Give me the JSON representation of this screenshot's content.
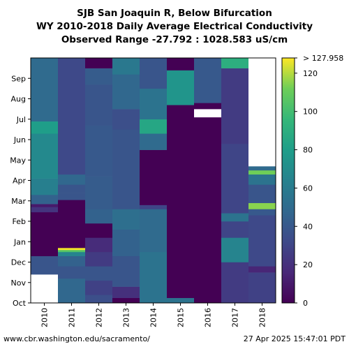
{
  "title_lines": [
    "SJB San Joaquin R, Below Bifurcation",
    "WY 2010-2018 Daily Average Electrical Conductivity",
    "Observed Range -27.792 : 1028.583 uS/cm"
  ],
  "footer": {
    "url": "www.cbr.washington.edu/sacramento/",
    "timestamp": "27 Apr 2025 15:47:01 PDT"
  },
  "colors": {
    "low": "#440154",
    "mid": "#21918c",
    "high": "#fde725",
    "missing": "#ffffff"
  },
  "chart_data": {
    "type": "heatmap",
    "x_categories": [
      "2010",
      "2011",
      "2012",
      "2013",
      "2014",
      "2015",
      "2016",
      "2017",
      "2018"
    ],
    "y_ticks": [
      "Oct",
      "Nov",
      "Dec",
      "Jan",
      "Feb",
      "Mar",
      "Apr",
      "May",
      "Jun",
      "Jul",
      "Aug",
      "Sep"
    ],
    "colorbar": {
      "min": 0,
      "max": 127.958,
      "ticks": [
        "0",
        "20",
        "40",
        "60",
        "80",
        "100",
        "120"
      ],
      "top_label": "> 127.958"
    },
    "columns": [
      {
        "year": "2010",
        "segments": [
          [
            0,
            1.4,
            null
          ],
          [
            1.4,
            2.3,
            38
          ],
          [
            2.3,
            4.45,
            0
          ],
          [
            4.45,
            4.7,
            22
          ],
          [
            4.7,
            4.85,
            10
          ],
          [
            4.85,
            5.3,
            45
          ],
          [
            5.3,
            6.1,
            62
          ],
          [
            6.1,
            8.3,
            68
          ],
          [
            8.3,
            8.9,
            80
          ],
          [
            8.9,
            12,
            50
          ]
        ]
      },
      {
        "year": "2011",
        "segments": [
          [
            0,
            1.2,
            48
          ],
          [
            1.2,
            1.8,
            38
          ],
          [
            1.8,
            2.3,
            45
          ],
          [
            2.3,
            2.5,
            65
          ],
          [
            2.5,
            2.6,
            105
          ],
          [
            2.6,
            2.7,
            127
          ],
          [
            2.7,
            5.05,
            0
          ],
          [
            5.05,
            5.4,
            38
          ],
          [
            5.4,
            5.8,
            38
          ],
          [
            5.8,
            6.3,
            48
          ],
          [
            6.3,
            12,
            32
          ]
        ]
      },
      {
        "year": "2012",
        "segments": [
          [
            0,
            0.4,
            35
          ],
          [
            0.4,
            1.1,
            28
          ],
          [
            1.1,
            1.8,
            38
          ],
          [
            1.8,
            2.5,
            25
          ],
          [
            2.5,
            3.2,
            18
          ],
          [
            3.2,
            3.9,
            0
          ],
          [
            3.9,
            4.6,
            45
          ],
          [
            4.6,
            6.2,
            42
          ],
          [
            6.2,
            8.7,
            40
          ],
          [
            8.7,
            10.7,
            38
          ],
          [
            10.7,
            11.5,
            42
          ],
          [
            11.5,
            12,
            0
          ]
        ]
      },
      {
        "year": "2013",
        "segments": [
          [
            0,
            0.25,
            0
          ],
          [
            0.25,
            0.8,
            20
          ],
          [
            0.8,
            2.3,
            38
          ],
          [
            2.3,
            3.6,
            45
          ],
          [
            3.6,
            4.6,
            52
          ],
          [
            4.6,
            8.5,
            38
          ],
          [
            8.5,
            9.5,
            35
          ],
          [
            9.5,
            11.2,
            48
          ],
          [
            11.2,
            12,
            58
          ]
        ]
      },
      {
        "year": "2014",
        "segments": [
          [
            0,
            2.5,
            55
          ],
          [
            2.5,
            4.6,
            50
          ],
          [
            4.6,
            4.8,
            30
          ],
          [
            4.8,
            7.5,
            0
          ],
          [
            7.5,
            8.3,
            50
          ],
          [
            8.3,
            9.0,
            85
          ],
          [
            9.0,
            10.5,
            55
          ],
          [
            10.5,
            12,
            38
          ]
        ]
      },
      {
        "year": "2015",
        "segments": [
          [
            0,
            0.25,
            55
          ],
          [
            0.25,
            9.7,
            0
          ],
          [
            9.7,
            11.4,
            75
          ],
          [
            11.4,
            12,
            0
          ]
        ]
      },
      {
        "year": "2016",
        "segments": [
          [
            0,
            9.1,
            0
          ],
          [
            9.1,
            9.5,
            null
          ],
          [
            9.5,
            9.8,
            0
          ],
          [
            9.8,
            12,
            40
          ]
        ]
      },
      {
        "year": "2017",
        "segments": [
          [
            0,
            2.0,
            25
          ],
          [
            2.0,
            3.2,
            65
          ],
          [
            3.2,
            4.0,
            30
          ],
          [
            4.0,
            4.4,
            55
          ],
          [
            4.4,
            7.8,
            30
          ],
          [
            7.8,
            11.5,
            25
          ],
          [
            11.5,
            12,
            90
          ]
        ]
      },
      {
        "year": "2018",
        "segments": [
          [
            0,
            1.5,
            28
          ],
          [
            1.5,
            1.8,
            15
          ],
          [
            1.8,
            4.3,
            32
          ],
          [
            4.3,
            4.6,
            40
          ],
          [
            4.6,
            4.9,
            115
          ],
          [
            4.9,
            5.8,
            38
          ],
          [
            5.8,
            6.3,
            55
          ],
          [
            6.3,
            6.5,
            112
          ],
          [
            6.5,
            6.7,
            50
          ],
          [
            6.7,
            12,
            null
          ]
        ]
      }
    ]
  }
}
